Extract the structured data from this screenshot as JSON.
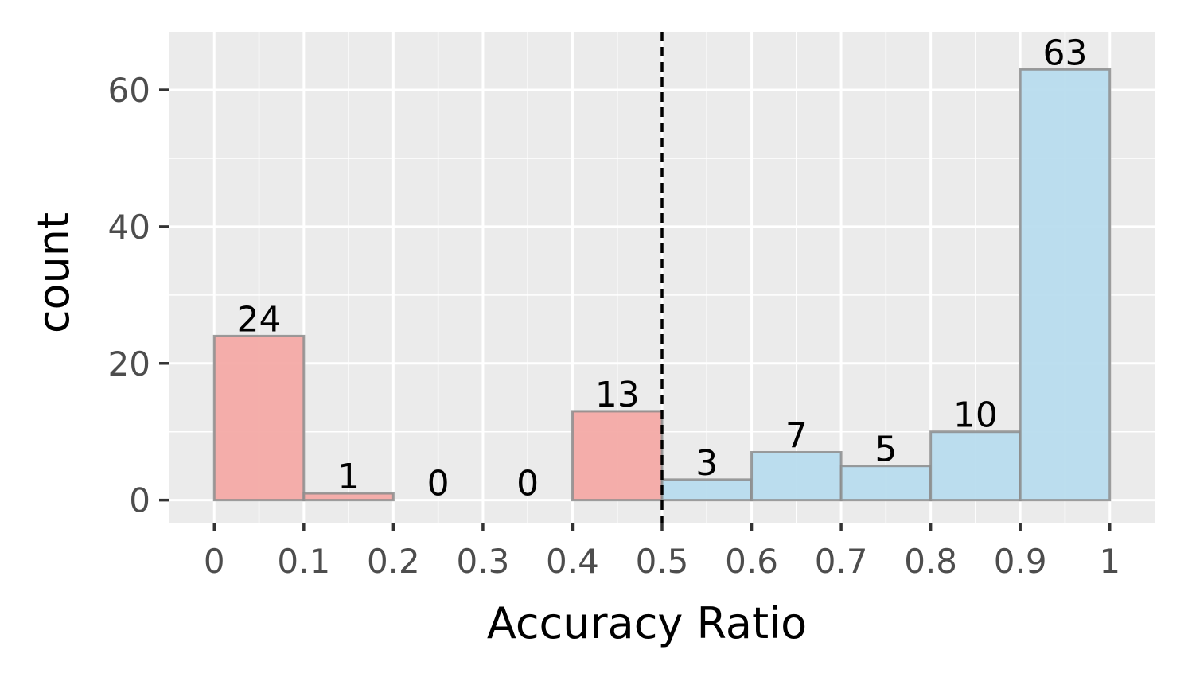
{
  "chart_data": {
    "type": "bar",
    "title": "",
    "xlabel": "Accuracy Ratio",
    "ylabel": "count",
    "xlim": [
      -0.05,
      1.05
    ],
    "ylim": [
      -3.3,
      68.5
    ],
    "x_ticks": [
      0,
      0.1,
      0.2,
      0.3,
      0.4,
      0.5,
      0.6,
      0.7,
      0.8,
      0.9,
      1
    ],
    "x_tick_labels": [
      "0",
      "0.1",
      "0.2",
      "0.3",
      "0.4",
      "0.5",
      "0.6",
      "0.7",
      "0.8",
      "0.9",
      "1"
    ],
    "y_ticks": [
      0,
      20,
      40,
      60
    ],
    "y_tick_labels": [
      "0",
      "20",
      "40",
      "60"
    ],
    "grid": true,
    "threshold_line": {
      "x": 0.5,
      "style": "dashed",
      "color": "#000000"
    },
    "bins": [
      {
        "start": 0.0,
        "end": 0.1,
        "value": 24,
        "label": "24",
        "group": "low"
      },
      {
        "start": 0.1,
        "end": 0.2,
        "value": 1,
        "label": "1",
        "group": "low"
      },
      {
        "start": 0.2,
        "end": 0.3,
        "value": 0,
        "label": "0",
        "group": "low"
      },
      {
        "start": 0.3,
        "end": 0.4,
        "value": 0,
        "label": "0",
        "group": "low"
      },
      {
        "start": 0.4,
        "end": 0.5,
        "value": 13,
        "label": "13",
        "group": "low"
      },
      {
        "start": 0.5,
        "end": 0.6,
        "value": 3,
        "label": "3",
        "group": "high"
      },
      {
        "start": 0.6,
        "end": 0.7,
        "value": 7,
        "label": "7",
        "group": "high"
      },
      {
        "start": 0.7,
        "end": 0.8,
        "value": 5,
        "label": "5",
        "group": "high"
      },
      {
        "start": 0.8,
        "end": 0.9,
        "value": 10,
        "label": "10",
        "group": "high"
      },
      {
        "start": 0.9,
        "end": 1.0,
        "value": 63,
        "label": "63",
        "group": "high"
      }
    ],
    "colors": {
      "low": "#f4aaa6",
      "high": "#b8dcee",
      "bar_outline": "#8c8c8c",
      "panel": "#ebebeb",
      "grid": "#ffffff"
    }
  }
}
